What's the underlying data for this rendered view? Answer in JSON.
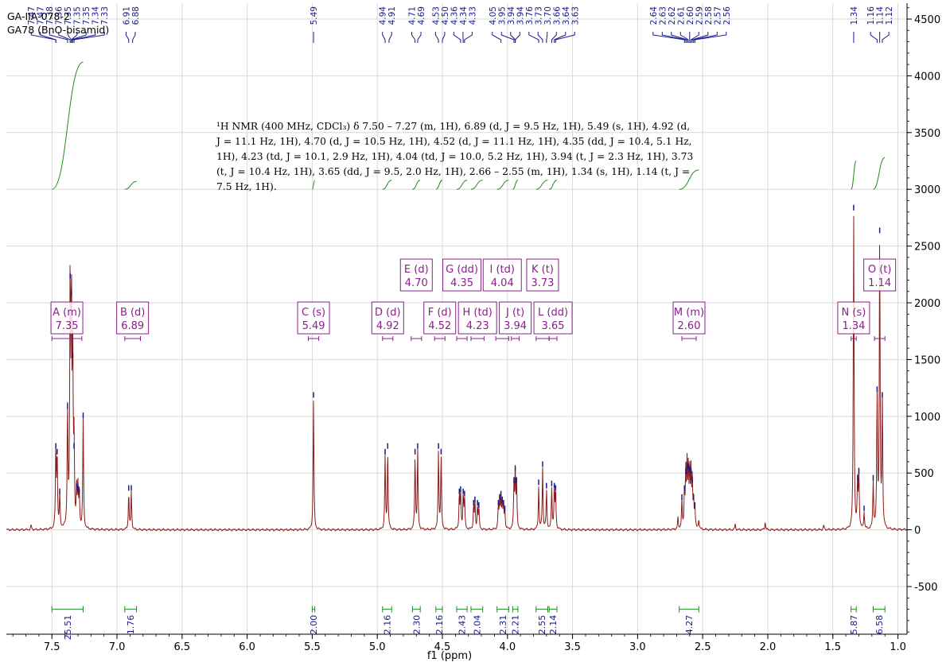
{
  "sample": {
    "line1": "GA-IIA-078-2",
    "line2": "GA78 (BnO-bisamid)"
  },
  "summary": {
    "text": "¹H NMR (400 MHz, CDCl₃) δ 7.50 – 7.27 (m, 1H), 6.89 (d, J = 9.5 Hz, 1H), 5.49 (s, 1H), 4.92 (d, J = 11.1 Hz, 1H), 4.70 (d, J = 10.5 Hz, 1H), 4.52 (d, J = 11.1 Hz, 1H), 4.35 (dd, J = 10.4, 5.1 Hz, 1H), 4.23 (td, J = 10.1, 2.9 Hz, 1H), 4.04 (td, J = 10.0, 5.2 Hz, 1H), 3.94 (t, J = 2.3 Hz, 1H), 3.73 (t, J = 10.4 Hz, 1H), 3.65 (dd, J = 9.5, 2.0 Hz, 1H), 2.66 – 2.55 (m, 1H), 1.34 (s, 1H), 1.14 (t, J = 7.5 Hz, 1H)."
  },
  "colors": {
    "spectrum": "#8b1a1a",
    "integral": "#1f8a1f",
    "peak_label": "#1a1a8c",
    "multiplet": "#8a1f8a",
    "grid": "#d9d9d9",
    "axis": "#000000"
  },
  "chart_data": {
    "type": "line",
    "title": "",
    "xlabel": "f1 (ppm)",
    "ylabel": "",
    "xlim": [
      7.85,
      0.93
    ],
    "ylim": [
      -920,
      4640
    ],
    "x_reversed": true,
    "x_ticks": [
      "7.5",
      "7.0",
      "6.5",
      "6.0",
      "5.5",
      "5.0",
      "4.5",
      "4.0",
      "3.5",
      "3.0",
      "2.5",
      "2.0",
      "1.5",
      "1.0"
    ],
    "y_ticks": [
      "4500",
      "4000",
      "3500",
      "3000",
      "2500",
      "2000",
      "1500",
      "1000",
      "500",
      "0",
      "-500"
    ],
    "grid": true,
    "y_axis_side": "right",
    "series": [
      {
        "peaks": [
          {
            "ppm": 7.47,
            "h": 700
          },
          {
            "ppm": 7.46,
            "h": 650
          },
          {
            "ppm": 7.44,
            "h": 300
          },
          {
            "ppm": 7.38,
            "h": 1050
          },
          {
            "ppm": 7.36,
            "h": 2200
          },
          {
            "ppm": 7.35,
            "h": 2050
          },
          {
            "ppm": 7.34,
            "h": 1500
          },
          {
            "ppm": 7.33,
            "h": 700
          },
          {
            "ppm": 7.31,
            "h": 350
          },
          {
            "ppm": 7.3,
            "h": 330
          },
          {
            "ppm": 7.29,
            "h": 300
          },
          {
            "ppm": 7.26,
            "h": 970
          },
          {
            "ppm": 6.91,
            "h": 330
          },
          {
            "ppm": 6.89,
            "h": 330
          },
          {
            "ppm": 5.49,
            "h": 1150
          },
          {
            "ppm": 4.94,
            "h": 650
          },
          {
            "ppm": 4.92,
            "h": 700
          },
          {
            "ppm": 4.71,
            "h": 650
          },
          {
            "ppm": 4.69,
            "h": 700
          },
          {
            "ppm": 4.53,
            "h": 700
          },
          {
            "ppm": 4.51,
            "h": 650
          },
          {
            "ppm": 4.37,
            "h": 300
          },
          {
            "ppm": 4.36,
            "h": 320
          },
          {
            "ppm": 4.34,
            "h": 300
          },
          {
            "ppm": 4.33,
            "h": 280
          },
          {
            "ppm": 4.26,
            "h": 200
          },
          {
            "ppm": 4.25,
            "h": 230
          },
          {
            "ppm": 4.23,
            "h": 200
          },
          {
            "ppm": 4.22,
            "h": 180
          },
          {
            "ppm": 4.07,
            "h": 200
          },
          {
            "ppm": 4.06,
            "h": 250
          },
          {
            "ppm": 4.05,
            "h": 280
          },
          {
            "ppm": 4.04,
            "h": 230
          },
          {
            "ppm": 4.03,
            "h": 200
          },
          {
            "ppm": 4.02,
            "h": 150
          },
          {
            "ppm": 3.95,
            "h": 400
          },
          {
            "ppm": 3.94,
            "h": 500
          },
          {
            "ppm": 3.93,
            "h": 400
          },
          {
            "ppm": 3.76,
            "h": 380
          },
          {
            "ppm": 3.73,
            "h": 540
          },
          {
            "ppm": 3.7,
            "h": 350
          },
          {
            "ppm": 3.66,
            "h": 370
          },
          {
            "ppm": 3.64,
            "h": 350
          },
          {
            "ppm": 3.63,
            "h": 330
          },
          {
            "ppm": 2.66,
            "h": 250
          },
          {
            "ppm": 2.64,
            "h": 330
          },
          {
            "ppm": 2.63,
            "h": 480
          },
          {
            "ppm": 2.62,
            "h": 530
          },
          {
            "ppm": 2.61,
            "h": 520
          },
          {
            "ppm": 2.6,
            "h": 500
          },
          {
            "ppm": 2.59,
            "h": 480
          },
          {
            "ppm": 2.58,
            "h": 400
          },
          {
            "ppm": 2.57,
            "h": 250
          },
          {
            "ppm": 2.56,
            "h": 180
          },
          {
            "ppm": 2.69,
            "h": 100
          },
          {
            "ppm": 2.53,
            "h": 90
          },
          {
            "ppm": 1.34,
            "h": 2800
          },
          {
            "ppm": 1.31,
            "h": 420
          },
          {
            "ppm": 1.3,
            "h": 480
          },
          {
            "ppm": 1.26,
            "h": 150
          },
          {
            "ppm": 1.19,
            "h": 420
          },
          {
            "ppm": 1.16,
            "h": 1200
          },
          {
            "ppm": 1.14,
            "h": 2600
          },
          {
            "ppm": 1.12,
            "h": 1150
          },
          {
            "ppm": 1.57,
            "h": 40
          },
          {
            "ppm": 2.25,
            "h": 50
          },
          {
            "ppm": 2.02,
            "h": 70
          },
          {
            "ppm": 7.66,
            "h": 40
          }
        ]
      }
    ],
    "peak_labels": [
      "7.47",
      "7.47",
      "7.38",
      "7.36",
      "7.35",
      "7.35",
      "7.35",
      "7.34",
      "7.33",
      "6.91",
      "6.88",
      "5.49",
      "4.94",
      "4.91",
      "4.71",
      "4.69",
      "4.53",
      "4.50",
      "4.36",
      "4.34",
      "4.33",
      "4.05",
      "3.95",
      "3.94",
      "3.94",
      "3.76",
      "3.73",
      "3.70",
      "3.66",
      "3.64",
      "3.63",
      "2.64",
      "2.63",
      "2.62",
      "2.61",
      "2.60",
      "2.59",
      "2.58",
      "2.57",
      "2.56",
      "1.34",
      "1.16",
      "1.14",
      "1.12"
    ],
    "multiplets": [
      {
        "letter": "A",
        "mult": "m",
        "shift": "7.35",
        "range": [
          7.5,
          7.27
        ],
        "row": 2
      },
      {
        "letter": "B",
        "mult": "d",
        "shift": "6.89",
        "range": [
          6.94,
          6.82
        ],
        "row": 2
      },
      {
        "letter": "C",
        "mult": "s",
        "shift": "5.49",
        "range": [
          5.53,
          5.45
        ],
        "row": 2
      },
      {
        "letter": "D",
        "mult": "d",
        "shift": "4.92",
        "range": [
          4.96,
          4.88
        ],
        "row": 2
      },
      {
        "letter": "E",
        "mult": "d",
        "shift": "4.70",
        "range": [
          4.74,
          4.66
        ],
        "row": 1
      },
      {
        "letter": "F",
        "mult": "d",
        "shift": "4.52",
        "range": [
          4.56,
          4.48
        ],
        "row": 2
      },
      {
        "letter": "G",
        "mult": "dd",
        "shift": "4.35",
        "range": [
          4.39,
          4.31
        ],
        "row": 1
      },
      {
        "letter": "H",
        "mult": "td",
        "shift": "4.23",
        "range": [
          4.28,
          4.18
        ],
        "row": 2
      },
      {
        "letter": "I",
        "mult": "td",
        "shift": "4.04",
        "range": [
          4.09,
          3.99
        ],
        "row": 1
      },
      {
        "letter": "J",
        "mult": "t",
        "shift": "3.94",
        "range": [
          3.97,
          3.91
        ],
        "row": 2
      },
      {
        "letter": "K",
        "mult": "t",
        "shift": "3.73",
        "range": [
          3.78,
          3.68
        ],
        "row": 1
      },
      {
        "letter": "L",
        "mult": "dd",
        "shift": "3.65",
        "range": [
          3.68,
          3.62
        ],
        "row": 2
      },
      {
        "letter": "M",
        "mult": "m",
        "shift": "2.60",
        "range": [
          2.66,
          2.55
        ],
        "row": 2
      },
      {
        "letter": "N",
        "mult": "s",
        "shift": "1.34",
        "range": [
          1.36,
          1.32
        ],
        "row": 2
      },
      {
        "letter": "O",
        "mult": "t",
        "shift": "1.14",
        "range": [
          1.18,
          1.1
        ],
        "row": 1
      }
    ],
    "integrals": [
      {
        "value": "25.51",
        "from": 7.5,
        "to": 7.26,
        "level": 3000,
        "rise": 1120
      },
      {
        "value": "1.76",
        "from": 6.94,
        "to": 6.85,
        "level": 3000,
        "rise": 70
      },
      {
        "value": "2.00",
        "from": 5.5,
        "to": 5.48,
        "level": 3000,
        "rise": 80
      },
      {
        "value": "2.16",
        "from": 4.96,
        "to": 4.89,
        "level": 3000,
        "rise": 80
      },
      {
        "value": "2.30",
        "from": 4.73,
        "to": 4.67,
        "level": 3000,
        "rise": 80
      },
      {
        "value": "2.16",
        "from": 4.55,
        "to": 4.5,
        "level": 3000,
        "rise": 80
      },
      {
        "value": "2.43",
        "from": 4.39,
        "to": 4.31,
        "level": 3000,
        "rise": 80
      },
      {
        "value": "2.04",
        "from": 4.28,
        "to": 4.19,
        "level": 3000,
        "rise": 80
      },
      {
        "value": "2.31",
        "from": 4.08,
        "to": 3.99,
        "level": 3000,
        "rise": 80
      },
      {
        "value": "2.21",
        "from": 3.96,
        "to": 3.92,
        "level": 3000,
        "rise": 80
      },
      {
        "value": "2.55",
        "from": 3.78,
        "to": 3.69,
        "level": 3000,
        "rise": 80
      },
      {
        "value": "2.14",
        "from": 3.68,
        "to": 3.62,
        "level": 3000,
        "rise": 80
      },
      {
        "value": "4.27",
        "from": 2.68,
        "to": 2.53,
        "level": 3000,
        "rise": 170
      },
      {
        "value": "5.87",
        "from": 1.36,
        "to": 1.32,
        "level": 3000,
        "rise": 250
      },
      {
        "value": "6.58",
        "from": 1.19,
        "to": 1.1,
        "level": 3000,
        "rise": 280
      }
    ]
  }
}
